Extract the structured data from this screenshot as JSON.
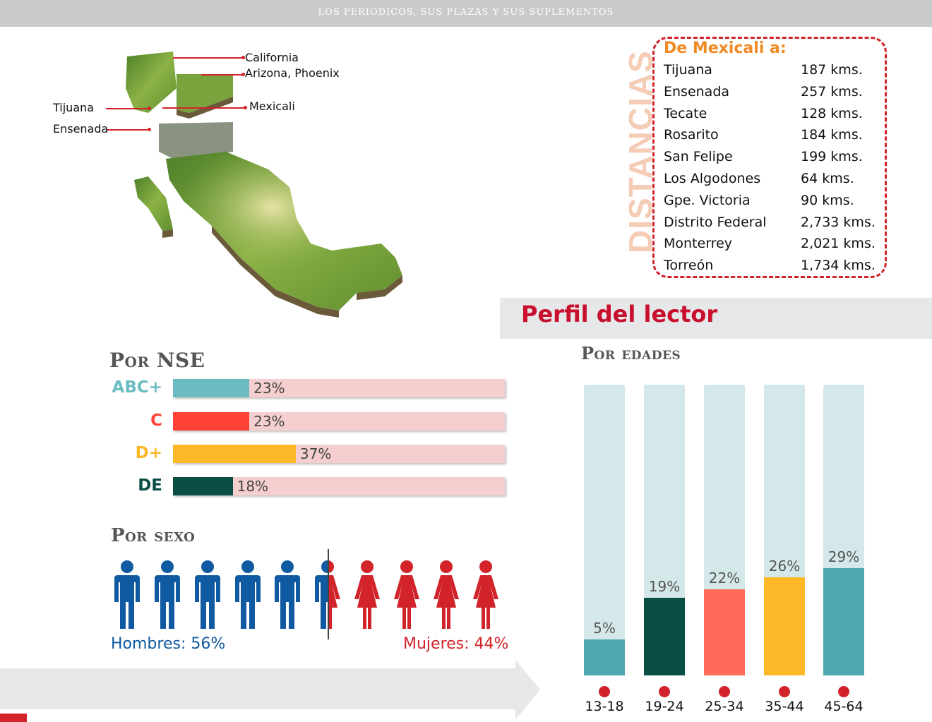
{
  "header": {
    "title": "LOS PERIODICOS, SUS PLAZAS Y SUS SUPLEMENTOS"
  },
  "map": {
    "labels": {
      "california": "California",
      "arizona": "Arizona, Phoenix",
      "mexicali": "Mexicali",
      "tijuana": "Tijuana",
      "ensenada": "Ensenada"
    }
  },
  "distances": {
    "vertical_label": "DISTANCIAS",
    "title": "De Mexicali a:",
    "rows": [
      {
        "city": "Tijuana",
        "km": "187 kms."
      },
      {
        "city": "Ensenada",
        "km": "257 kms."
      },
      {
        "city": "Tecate",
        "km": "128 kms."
      },
      {
        "city": "Rosarito",
        "km": "184 kms."
      },
      {
        "city": "San Felipe",
        "km": "199 kms."
      },
      {
        "city": "Los Algodones",
        "km": "64 kms."
      },
      {
        "city": "Gpe. Victoria",
        "km": "90 kms."
      },
      {
        "city": "Distrito Federal",
        "km": "2,733 kms."
      },
      {
        "city": "Monterrey",
        "km": "2,021 kms."
      },
      {
        "city": "Torreón",
        "km": "1,734 kms."
      }
    ]
  },
  "perfil": {
    "title": "Perfil del lector"
  },
  "nse": {
    "title": "Por NSE",
    "items": [
      {
        "label": "ABC+",
        "value": 23,
        "text": "23%",
        "color": "#6bbcc1"
      },
      {
        "label": "C",
        "value": 23,
        "text": "23%",
        "color": "#ff4136"
      },
      {
        "label": "D+",
        "value": 37,
        "text": "37%",
        "color": "#fdb827"
      },
      {
        "label": "DE",
        "value": 18,
        "text": "18%",
        "color": "#0a4d45"
      }
    ]
  },
  "sexo": {
    "title": "Por sexo",
    "men": {
      "text": "Hombres: 56%",
      "value": 56,
      "color": "#0f5aa0"
    },
    "women": {
      "text": "Mujeres: 44%",
      "value": 44,
      "color": "#d2232a"
    }
  },
  "edades": {
    "title": "Por edades",
    "items": [
      {
        "range": "13-18",
        "value": 5,
        "text": "5%",
        "color": "#4fa7b2"
      },
      {
        "range": "19-24",
        "value": 19,
        "text": "19%",
        "color": "#0a4d45"
      },
      {
        "range": "25-34",
        "value": 22,
        "text": "22%",
        "color": "#ff6b5a"
      },
      {
        "range": "35-44",
        "value": 26,
        "text": "26%",
        "color": "#fdb827"
      },
      {
        "range": "45-64",
        "value": 29,
        "text": "29%",
        "color": "#4fa7b2"
      }
    ]
  }
}
